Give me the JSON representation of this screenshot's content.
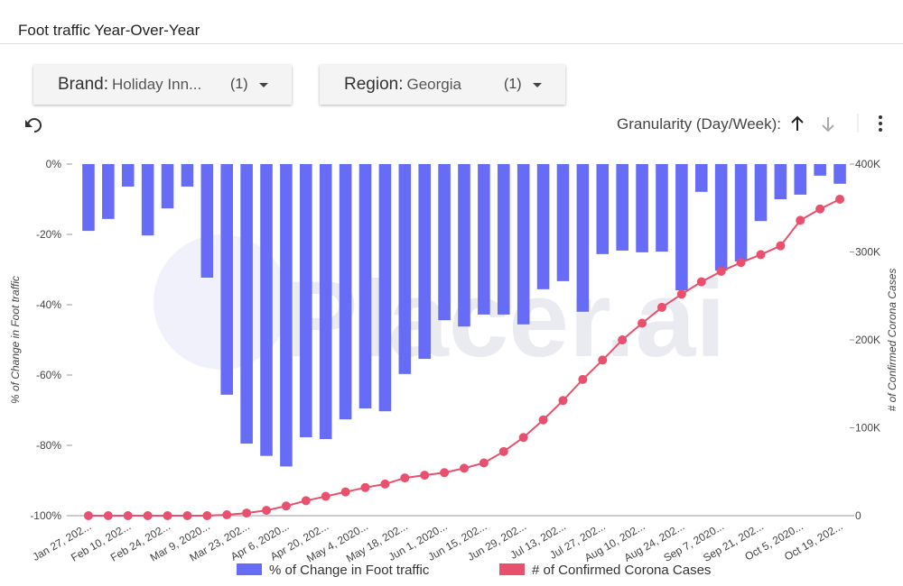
{
  "header": {
    "title": "Foot traffic Year-Over-Year"
  },
  "filters": [
    {
      "label": "Brand",
      "value": "Holiday Inn...",
      "count": "(1)"
    },
    {
      "label": "Region",
      "value": "Georgia",
      "count": "(1)"
    }
  ],
  "controls": {
    "granularity": "Granularity (Day/Week):"
  },
  "chart_data": {
    "type": "bar-line",
    "watermark": "Placer.ai",
    "y_label": "% of Change in Foot traffic",
    "y2_label": "# of Confirmed Corona Cases",
    "categories": [
      "Jan 27, 202...",
      null,
      "Feb 10, 202...",
      null,
      "Feb 24, 202...",
      null,
      "Mar 9, 2020...",
      null,
      "Mar 23, 202...",
      null,
      "Apr 6, 2020...",
      null,
      "Apr 20, 202...",
      null,
      "May 4, 2020...",
      null,
      "May 18, 202...",
      null,
      "Jun 1, 2020...",
      null,
      "Jun 15, 202...",
      null,
      "Jun 29, 202...",
      null,
      "Jul 13, 202...",
      null,
      "Jul 27, 202...",
      null,
      "Aug 10, 202...",
      null,
      "Aug 24, 202...",
      null,
      "Sep 7, 2020...",
      null,
      "Sep 21, 202...",
      null,
      "Oct 5, 2020...",
      null,
      "Oct 19, 202..."
    ],
    "series": [
      {
        "name": "% of Change in Foot traffic",
        "color": "#676cf6",
        "kind": "bar",
        "values": [
          -19,
          -15.6,
          -6.4,
          -20.3,
          -12.6,
          -6.4,
          -32.3,
          -65.6,
          -79.5,
          -83,
          -86,
          -77.7,
          -78.2,
          -72.6,
          -69.5,
          -70.3,
          -59.7,
          -55.4,
          -44.4,
          -46.2,
          -42.8,
          -42.8,
          -45.6,
          -35.6,
          -33.3,
          -42,
          -25.6,
          -24.6,
          -25.1,
          -24.9,
          -35.9,
          -7.9,
          -30.3,
          -27.7,
          -16.2,
          -10,
          -8.7,
          -3.3,
          -5.6
        ]
      },
      {
        "name": "# of Confirmed Corona Cases",
        "color": "#e8506e",
        "kind": "line",
        "axis": "y2",
        "values": [
          0,
          0,
          0,
          0,
          0,
          0,
          0,
          1000,
          3000,
          6000,
          11000,
          17000,
          22000,
          27000,
          32000,
          36000,
          43000,
          46000,
          49000,
          54000,
          60000,
          73000,
          89000,
          109000,
          131000,
          155000,
          177000,
          200000,
          219000,
          237000,
          252000,
          266000,
          278000,
          288000,
          297000,
          307000,
          336000,
          349000,
          360000
        ]
      }
    ],
    "ylim": [
      -100,
      0
    ],
    "yticks": [
      {
        "value": -100,
        "label": "-100%"
      },
      {
        "value": -80,
        "label": "-80%"
      },
      {
        "value": -60,
        "label": "-60%"
      },
      {
        "value": -40,
        "label": "-40%"
      },
      {
        "value": -20,
        "label": "-20%"
      },
      {
        "value": 0,
        "label": "0%"
      }
    ],
    "y2lim": [
      0,
      400000
    ],
    "y2ticks": [
      0,
      {
        "value": 100000,
        "label": "100K"
      },
      {
        "value": 200000,
        "label": "200K"
      },
      {
        "value": 300000,
        "label": "300K"
      },
      {
        "value": 400000,
        "label": "400K"
      }
    ],
    "legend": "bottom"
  }
}
